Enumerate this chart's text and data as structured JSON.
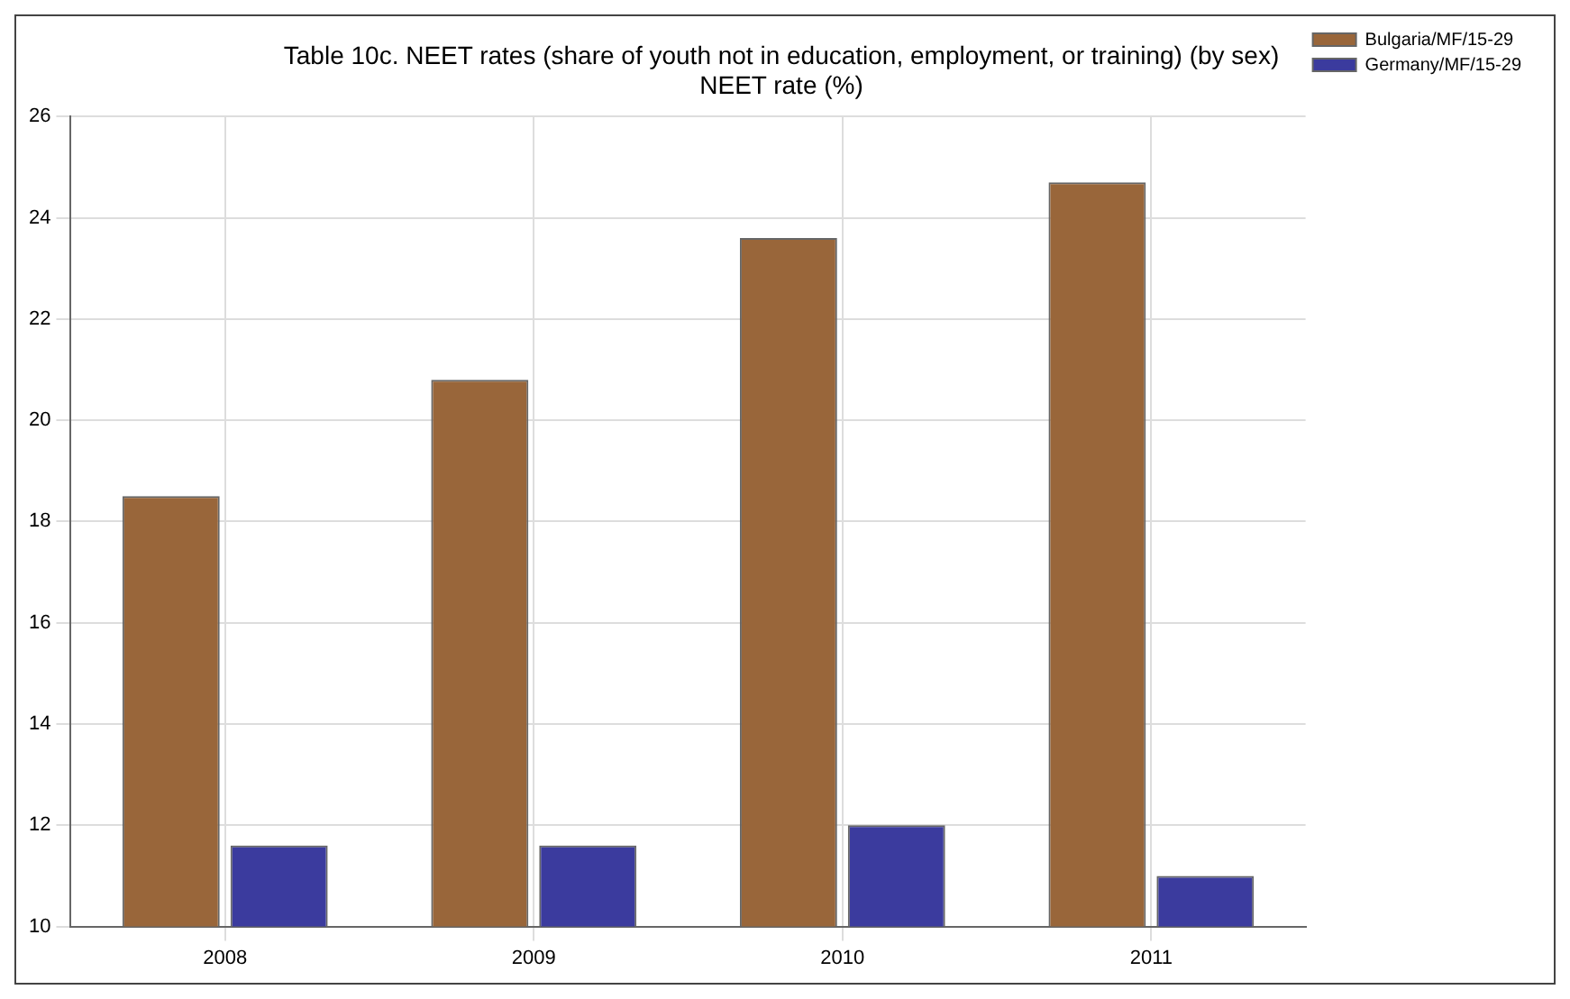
{
  "chart_data": {
    "type": "bar",
    "title": "Table 10c. NEET rates (share of youth not in education, employment, or training) (by sex)",
    "subtitle": "NEET rate (%)",
    "categories": [
      "2008",
      "2009",
      "2010",
      "2011"
    ],
    "series": [
      {
        "name": "Bulgaria/MF/15-29",
        "color": "#99663a",
        "values": [
          18.5,
          20.8,
          23.6,
          24.7
        ]
      },
      {
        "name": "Germany/MF/15-29",
        "color": "#3b3b9e",
        "values": [
          11.6,
          11.6,
          12.0,
          11.0
        ]
      }
    ],
    "ylim": [
      10,
      26
    ],
    "yticks": [
      10,
      12,
      14,
      16,
      18,
      20,
      22,
      24,
      26
    ],
    "grid": true,
    "legend": "top right"
  }
}
